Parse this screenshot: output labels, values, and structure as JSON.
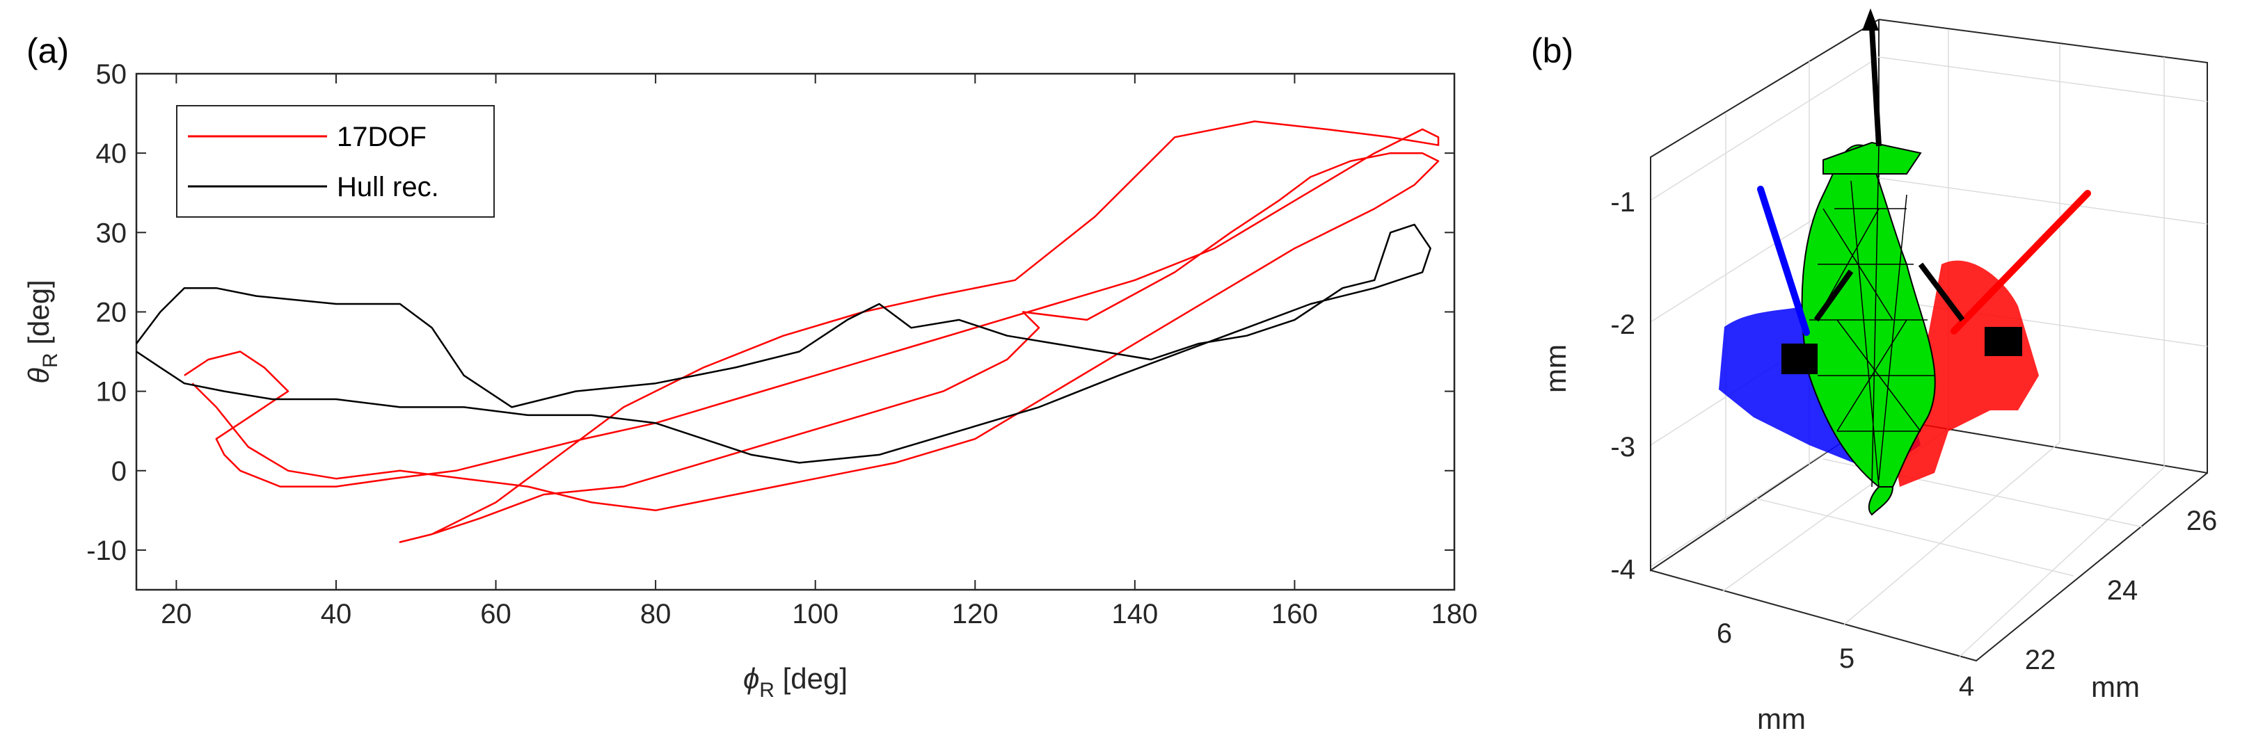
{
  "panel_a": {
    "label": "(a)",
    "xlabel_sym": "ϕ",
    "xlabel_sub": "R",
    "xlabel_unit": " [deg]",
    "ylabel_sym": "θ",
    "ylabel_sub": "R",
    "ylabel_unit": " [deg]"
  },
  "panel_b": {
    "label": "(b)",
    "zlabel": "mm",
    "xlabel": "mm",
    "ylabel": "mm",
    "z_ticks": [
      "-1",
      "-2",
      "-3",
      "-4"
    ],
    "x_ticks": [
      "6",
      "5",
      "4"
    ],
    "y_ticks": [
      "22",
      "24",
      "26"
    ],
    "colors": {
      "body": "#00e000",
      "left_wing": "#0000ff",
      "right_wing": "#ff0000",
      "edges": "#000000",
      "axis_arrow": "#000000"
    }
  },
  "chart_data": [
    {
      "type": "line",
      "xlim": [
        15,
        180
      ],
      "ylim": [
        -15,
        50
      ],
      "x_ticks": [
        20,
        40,
        60,
        80,
        100,
        120,
        140,
        160,
        180
      ],
      "y_ticks": [
        -10,
        0,
        10,
        20,
        30,
        40,
        50
      ],
      "grid": false,
      "legend_position": "top-left",
      "series": [
        {
          "name": "17DOF",
          "color": "#ff0000",
          "x": [
            21,
            24,
            28,
            31,
            34,
            31,
            28,
            25,
            26,
            28,
            33,
            40,
            47,
            55,
            63,
            71,
            80,
            90,
            100,
            110,
            120,
            130,
            140,
            150,
            160,
            170,
            176,
            178,
            178,
            172,
            164,
            155,
            145,
            135,
            125,
            115,
            106,
            96,
            86,
            76,
            68,
            60,
            52,
            48,
            52,
            58,
            66,
            76,
            86,
            96,
            106,
            116,
            124,
            128,
            126,
            134,
            145,
            152,
            158,
            162,
            167,
            172,
            176,
            178,
            175,
            170,
            160,
            150,
            140,
            130,
            120,
            110,
            100,
            90,
            80,
            72,
            64,
            56,
            48,
            40,
            34,
            29,
            25,
            22
          ],
          "values": [
            12,
            14,
            15,
            13,
            10,
            8,
            6,
            4,
            2,
            0,
            -2,
            -2,
            -1,
            0,
            2,
            4,
            6,
            9,
            12,
            15,
            18,
            21,
            24,
            28,
            34,
            40,
            43,
            42,
            41,
            42,
            43,
            44,
            42,
            32,
            24,
            22,
            20,
            17,
            13,
            8,
            2,
            -4,
            -8,
            -9,
            -8,
            -6,
            -3,
            -2,
            1,
            4,
            7,
            10,
            14,
            18,
            20,
            19,
            25,
            30,
            34,
            37,
            39,
            40,
            40,
            39,
            36,
            33,
            28,
            22,
            16,
            10,
            4,
            1,
            -1,
            -3,
            -5,
            -4,
            -2,
            -1,
            0,
            -1,
            0,
            3,
            8,
            11
          ]
        },
        {
          "name": "Hull rec.",
          "color": "#000000",
          "x": [
            15,
            18,
            21,
            25,
            30,
            40,
            48,
            52,
            56,
            62,
            70,
            80,
            90,
            98,
            104,
            108,
            112,
            118,
            124,
            130,
            136,
            142,
            148,
            154,
            160,
            166,
            170,
            172,
            175,
            177,
            176,
            170,
            162,
            154,
            146,
            138,
            128,
            118,
            108,
            98,
            92,
            86,
            80,
            72,
            64,
            56,
            48,
            40,
            32,
            26,
            21,
            18,
            15
          ],
          "values": [
            16,
            20,
            23,
            23,
            22,
            21,
            21,
            18,
            12,
            8,
            10,
            11,
            13,
            15,
            19,
            21,
            18,
            19,
            17,
            16,
            15,
            14,
            16,
            17,
            19,
            23,
            24,
            30,
            31,
            28,
            25,
            23,
            21,
            18,
            15,
            12,
            8,
            5,
            2,
            1,
            2,
            4,
            6,
            7,
            7,
            8,
            8,
            9,
            9,
            10,
            11,
            13,
            15
          ]
        }
      ]
    }
  ]
}
